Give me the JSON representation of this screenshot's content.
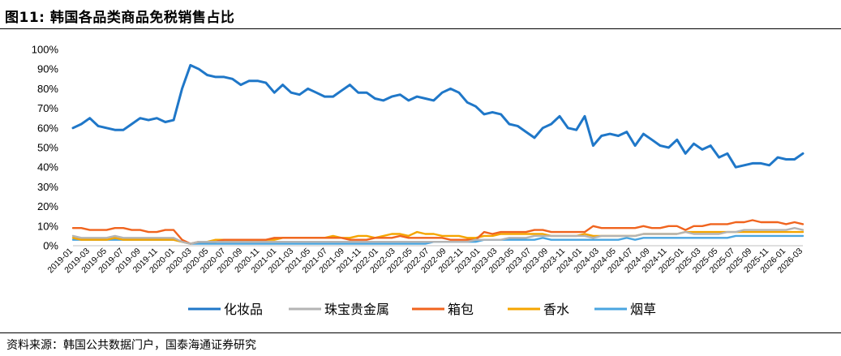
{
  "header": {
    "title": "图11:  韩国各品类商品免税销售占比"
  },
  "footer": {
    "source": "资料来源：韩国公共数据门户，国泰海通证券研究"
  },
  "chart_data": {
    "type": "line",
    "ylim": [
      0,
      100
    ],
    "yticks": [
      "0%",
      "10%",
      "20%",
      "30%",
      "40%",
      "50%",
      "60%",
      "70%",
      "80%",
      "90%",
      "100%"
    ],
    "x_labels": [
      "2019-01",
      "2019-03",
      "2019-05",
      "2019-07",
      "2019-09",
      "2019-11",
      "2020-01",
      "2020-03",
      "2020-05",
      "2020-07",
      "2020-09",
      "2020-11",
      "2021-01",
      "2021-03",
      "2021-05",
      "2021-07",
      "2021-09",
      "2021-11",
      "2022-01",
      "2022-03",
      "2022-05",
      "2022-07",
      "2022-09",
      "2022-11",
      "2023-01",
      "2023-03",
      "2023-05",
      "2023-07",
      "2023-09",
      "2023-11",
      "2024-01",
      "2024-03",
      "2024-05",
      "2024-07",
      "2024-09",
      "2024-11",
      "2025-01",
      "2025-03",
      "2025-05",
      "2025-07",
      "2025-09",
      "2025-11",
      "2026-01",
      "2026-03"
    ],
    "legend_position": "bottom",
    "series": [
      {
        "name": "化妆品",
        "color": "#1f77c8",
        "values": [
          60,
          62,
          65,
          61,
          60,
          59,
          59,
          62,
          65,
          64,
          65,
          63,
          64,
          80,
          92,
          90,
          87,
          86,
          86,
          85,
          82,
          84,
          84,
          83,
          78,
          82,
          78,
          77,
          80,
          78,
          76,
          76,
          79,
          82,
          78,
          78,
          75,
          74,
          76,
          77,
          74,
          76,
          75,
          74,
          78,
          80,
          78,
          73,
          71,
          67,
          68,
          67,
          62,
          61,
          58,
          55,
          60,
          62,
          66,
          60,
          59,
          66,
          51,
          56,
          57,
          56,
          58,
          51,
          57,
          54,
          51,
          50,
          54,
          47,
          52,
          49,
          51,
          45,
          47,
          40,
          41,
          42,
          42,
          41,
          45,
          44,
          44,
          47
        ]
      },
      {
        "name": "珠宝贵金属",
        "color": "#b4b4b4",
        "values": [
          5,
          4,
          4,
          4,
          4,
          5,
          4,
          4,
          4,
          4,
          4,
          4,
          4,
          2,
          1,
          2,
          2,
          2,
          2,
          2,
          2,
          2,
          2,
          2,
          2,
          2,
          2,
          2,
          2,
          2,
          2,
          2,
          2,
          2,
          2,
          2,
          2,
          2,
          2,
          2,
          2,
          2,
          2,
          2,
          2,
          2,
          2,
          2,
          3,
          3,
          3,
          3,
          4,
          4,
          4,
          5,
          5,
          5,
          5,
          5,
          5,
          5,
          4,
          5,
          5,
          5,
          5,
          5,
          6,
          6,
          6,
          6,
          6,
          7,
          6,
          6,
          6,
          6,
          7,
          7,
          8,
          8,
          8,
          8,
          8,
          8,
          9,
          8
        ]
      },
      {
        "name": "箱包",
        "color": "#f0641e",
        "values": [
          9,
          9,
          8,
          8,
          8,
          9,
          9,
          8,
          8,
          7,
          7,
          8,
          8,
          3,
          1,
          2,
          2,
          2,
          3,
          3,
          3,
          3,
          3,
          3,
          4,
          4,
          4,
          4,
          4,
          4,
          4,
          4,
          4,
          3,
          3,
          3,
          4,
          4,
          4,
          5,
          4,
          4,
          4,
          4,
          4,
          3,
          3,
          3,
          3,
          7,
          6,
          7,
          7,
          7,
          7,
          8,
          8,
          7,
          7,
          7,
          7,
          7,
          10,
          9,
          9,
          9,
          9,
          9,
          10,
          9,
          9,
          10,
          10,
          8,
          10,
          10,
          11,
          11,
          11,
          12,
          12,
          13,
          12,
          12,
          12,
          11,
          12,
          11
        ]
      },
      {
        "name": "香水",
        "color": "#f5a500",
        "values": [
          4,
          3,
          3,
          3,
          3,
          4,
          3,
          3,
          3,
          3,
          3,
          3,
          3,
          2,
          1,
          2,
          2,
          3,
          3,
          3,
          3,
          3,
          3,
          3,
          3,
          4,
          4,
          4,
          4,
          4,
          4,
          5,
          4,
          4,
          5,
          5,
          4,
          5,
          6,
          6,
          5,
          7,
          6,
          6,
          5,
          5,
          5,
          4,
          4,
          5,
          5,
          6,
          6,
          6,
          6,
          6,
          6,
          5,
          5,
          5,
          5,
          6,
          5,
          5,
          5,
          5,
          5,
          5,
          6,
          6,
          6,
          6,
          6,
          7,
          7,
          7,
          7,
          7,
          7,
          7,
          7,
          7,
          7,
          7,
          7,
          7,
          7,
          7
        ]
      },
      {
        "name": "烟草",
        "color": "#4aa5e0",
        "values": [
          3,
          3,
          3,
          3,
          3,
          3,
          3,
          3,
          3,
          3,
          3,
          3,
          3,
          2,
          1,
          1,
          1,
          1,
          1,
          1,
          1,
          1,
          1,
          1,
          1,
          1,
          1,
          1,
          1,
          1,
          1,
          1,
          1,
          1,
          1,
          1,
          1,
          1,
          1,
          1,
          1,
          1,
          1,
          2,
          2,
          2,
          2,
          2,
          2,
          3,
          3,
          3,
          3,
          3,
          3,
          3,
          4,
          3,
          3,
          3,
          3,
          3,
          3,
          3,
          3,
          3,
          4,
          3,
          4,
          4,
          4,
          4,
          4,
          4,
          4,
          4,
          4,
          4,
          4,
          5,
          5,
          5,
          5,
          5,
          5,
          5,
          5,
          5
        ]
      }
    ]
  }
}
